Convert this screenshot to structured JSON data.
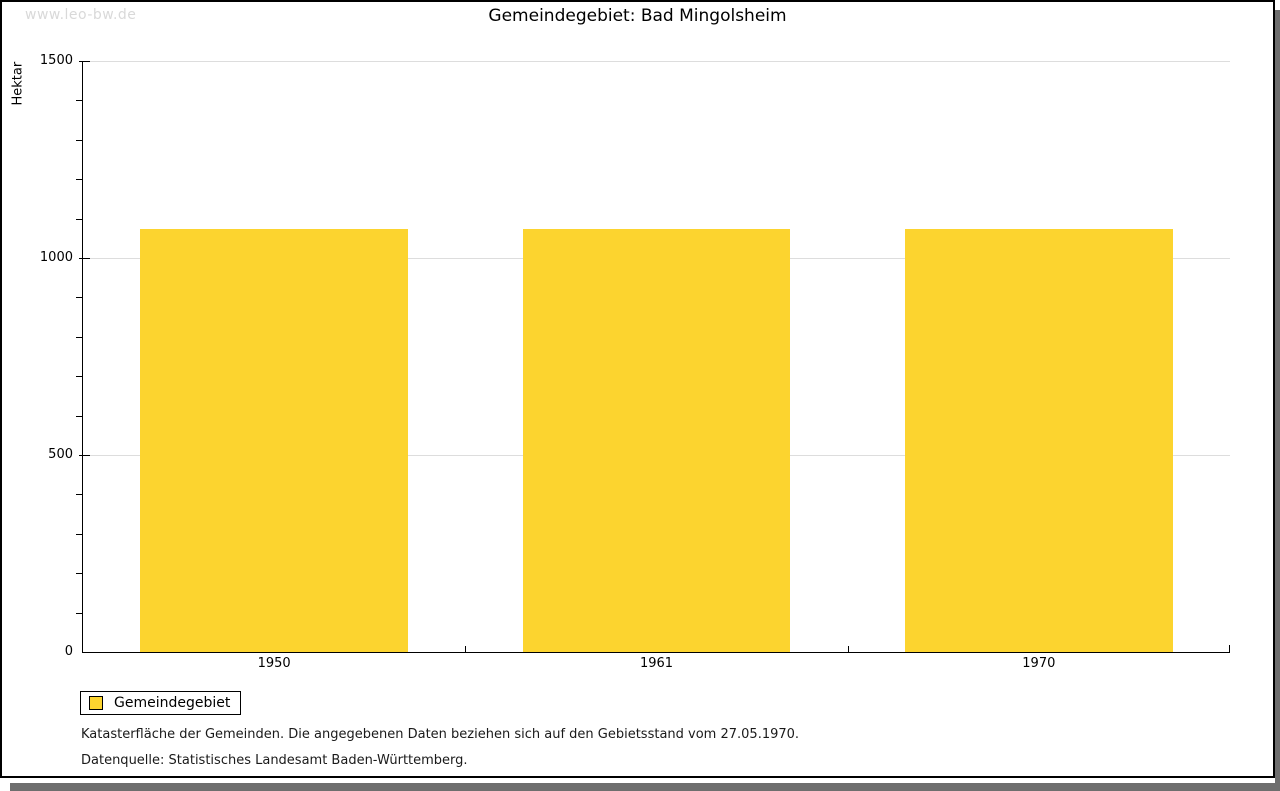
{
  "watermark": "www.leo-bw.de",
  "title": "Gemeindegebiet: Bad Mingolsheim",
  "chart_data": {
    "type": "bar",
    "title": "Gemeindegebiet: Bad Mingolsheim",
    "categories": [
      "1950",
      "1961",
      "1970"
    ],
    "series": [
      {
        "name": "Gemeindegebiet",
        "values": [
          1073,
          1073,
          1073
        ]
      }
    ],
    "xlabel": "",
    "ylabel": "Hektar",
    "ylim": [
      0,
      1500
    ],
    "yticks": [
      0,
      500,
      1000,
      1500
    ],
    "minor_tick_step": 100,
    "grid": true,
    "bar_color": "#FCD42F",
    "grid_color": "#DDDDDD",
    "legend_position": "bottom-left"
  },
  "legend": {
    "items": [
      {
        "label": "Gemeindegebiet",
        "color": "#FCD42F"
      }
    ]
  },
  "footer": {
    "line1": "Katasterfläche der Gemeinden. Die angegebenen Daten beziehen sich auf den Gebietsstand vom 27.05.1970.",
    "line2": "Datenquelle: Statistisches Landesamt Baden-Württemberg."
  }
}
